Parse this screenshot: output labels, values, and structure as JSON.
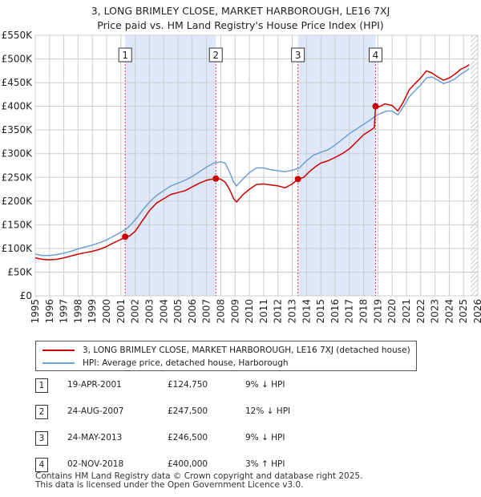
{
  "chart_data": {
    "type": "line",
    "title": "3, LONG BRIMLEY CLOSE, MARKET HARBOROUGH, LE16 7XJ",
    "subtitle": "Price paid vs. HM Land Registry's House Price Index (HPI)",
    "xlabel": "",
    "ylabel": "",
    "xlim": [
      1995,
      2026
    ],
    "ylim": [
      0,
      550000
    ],
    "x_ticks": [
      "1995",
      "1996",
      "1997",
      "1998",
      "1999",
      "2000",
      "2001",
      "2002",
      "2003",
      "2004",
      "2005",
      "2006",
      "2007",
      "2008",
      "2009",
      "2010",
      "2011",
      "2012",
      "2013",
      "2014",
      "2015",
      "2016",
      "2017",
      "2018",
      "2019",
      "2020",
      "2021",
      "2022",
      "2023",
      "2024",
      "2025",
      "2026"
    ],
    "y_ticks": [
      {
        "value": 0,
        "label": "£0"
      },
      {
        "value": 50000,
        "label": "£50K"
      },
      {
        "value": 100000,
        "label": "£100K"
      },
      {
        "value": 150000,
        "label": "£150K"
      },
      {
        "value": 200000,
        "label": "£200K"
      },
      {
        "value": 250000,
        "label": "£250K"
      },
      {
        "value": 300000,
        "label": "£300K"
      },
      {
        "value": 350000,
        "label": "£350K"
      },
      {
        "value": 400000,
        "label": "£400K"
      },
      {
        "value": 450000,
        "label": "£450K"
      },
      {
        "value": 500000,
        "label": "£500K"
      },
      {
        "value": 550000,
        "label": "£550K"
      }
    ],
    "grid": true,
    "series": [
      {
        "name": "3, LONG BRIMLEY CLOSE, MARKET HARBOROUGH, LE16 7XJ (detached house)",
        "color": "#cc0000",
        "points": [
          [
            1995.0,
            80000
          ],
          [
            1995.5,
            77000
          ],
          [
            1996.0,
            76000
          ],
          [
            1996.5,
            77000
          ],
          [
            1997.0,
            80000
          ],
          [
            1997.5,
            84000
          ],
          [
            1998.0,
            88000
          ],
          [
            1998.5,
            91000
          ],
          [
            1999.0,
            94000
          ],
          [
            1999.5,
            98000
          ],
          [
            2000.0,
            104000
          ],
          [
            2000.5,
            112000
          ],
          [
            2001.0,
            119000
          ],
          [
            2001.3,
            124750
          ],
          [
            2001.6,
            126000
          ],
          [
            2002.0,
            136000
          ],
          [
            2002.5,
            158000
          ],
          [
            2003.0,
            180000
          ],
          [
            2003.5,
            196000
          ],
          [
            2004.0,
            205000
          ],
          [
            2004.5,
            214000
          ],
          [
            2005.0,
            218000
          ],
          [
            2005.5,
            222000
          ],
          [
            2006.0,
            230000
          ],
          [
            2006.5,
            238000
          ],
          [
            2007.0,
            244000
          ],
          [
            2007.65,
            247500
          ],
          [
            2008.0,
            246000
          ],
          [
            2008.3,
            240000
          ],
          [
            2008.6,
            225000
          ],
          [
            2008.9,
            205000
          ],
          [
            2009.1,
            198000
          ],
          [
            2009.5,
            212000
          ],
          [
            2010.0,
            225000
          ],
          [
            2010.5,
            235000
          ],
          [
            2011.0,
            236000
          ],
          [
            2011.5,
            234000
          ],
          [
            2012.0,
            232000
          ],
          [
            2012.5,
            228000
          ],
          [
            2013.0,
            236000
          ],
          [
            2013.4,
            246500
          ],
          [
            2013.8,
            250000
          ],
          [
            2014.2,
            262000
          ],
          [
            2014.6,
            272000
          ],
          [
            2015.0,
            280000
          ],
          [
            2015.5,
            285000
          ],
          [
            2016.0,
            292000
          ],
          [
            2016.5,
            300000
          ],
          [
            2017.0,
            310000
          ],
          [
            2017.5,
            325000
          ],
          [
            2018.0,
            340000
          ],
          [
            2018.5,
            350000
          ],
          [
            2018.75,
            355000
          ],
          [
            2018.84,
            400000
          ],
          [
            2019.0,
            398000
          ],
          [
            2019.5,
            405000
          ],
          [
            2020.0,
            402000
          ],
          [
            2020.4,
            390000
          ],
          [
            2020.8,
            410000
          ],
          [
            2021.2,
            435000
          ],
          [
            2021.6,
            448000
          ],
          [
            2022.0,
            460000
          ],
          [
            2022.4,
            475000
          ],
          [
            2022.8,
            470000
          ],
          [
            2023.2,
            462000
          ],
          [
            2023.6,
            455000
          ],
          [
            2024.0,
            460000
          ],
          [
            2024.4,
            468000
          ],
          [
            2024.8,
            478000
          ],
          [
            2025.2,
            484000
          ],
          [
            2025.4,
            488000
          ]
        ]
      },
      {
        "name": "HPI: Average price, detached house, Harborough",
        "color": "#6f9fd0",
        "points": [
          [
            1995.0,
            88000
          ],
          [
            1995.5,
            85000
          ],
          [
            1996.0,
            85000
          ],
          [
            1996.5,
            87000
          ],
          [
            1997.0,
            90000
          ],
          [
            1997.5,
            94000
          ],
          [
            1998.0,
            99000
          ],
          [
            1998.5,
            103000
          ],
          [
            1999.0,
            107000
          ],
          [
            1999.5,
            112000
          ],
          [
            2000.0,
            118000
          ],
          [
            2000.5,
            126000
          ],
          [
            2001.0,
            134000
          ],
          [
            2001.5,
            144000
          ],
          [
            2002.0,
            160000
          ],
          [
            2002.5,
            180000
          ],
          [
            2003.0,
            198000
          ],
          [
            2003.5,
            212000
          ],
          [
            2004.0,
            222000
          ],
          [
            2004.5,
            232000
          ],
          [
            2005.0,
            238000
          ],
          [
            2005.5,
            244000
          ],
          [
            2006.0,
            252000
          ],
          [
            2006.5,
            262000
          ],
          [
            2007.0,
            272000
          ],
          [
            2007.5,
            280000
          ],
          [
            2008.0,
            283000
          ],
          [
            2008.3,
            280000
          ],
          [
            2008.6,
            262000
          ],
          [
            2008.9,
            240000
          ],
          [
            2009.1,
            232000
          ],
          [
            2009.5,
            245000
          ],
          [
            2010.0,
            260000
          ],
          [
            2010.5,
            270000
          ],
          [
            2011.0,
            270000
          ],
          [
            2011.5,
            266000
          ],
          [
            2012.0,
            264000
          ],
          [
            2012.5,
            262000
          ],
          [
            2013.0,
            265000
          ],
          [
            2013.5,
            270000
          ],
          [
            2014.0,
            285000
          ],
          [
            2014.5,
            297000
          ],
          [
            2015.0,
            303000
          ],
          [
            2015.5,
            308000
          ],
          [
            2016.0,
            318000
          ],
          [
            2016.5,
            330000
          ],
          [
            2017.0,
            342000
          ],
          [
            2017.5,
            352000
          ],
          [
            2018.0,
            362000
          ],
          [
            2018.5,
            372000
          ],
          [
            2018.84,
            380000
          ],
          [
            2019.2,
            385000
          ],
          [
            2019.6,
            390000
          ],
          [
            2020.0,
            390000
          ],
          [
            2020.4,
            382000
          ],
          [
            2020.8,
            400000
          ],
          [
            2021.2,
            420000
          ],
          [
            2021.6,
            433000
          ],
          [
            2022.0,
            445000
          ],
          [
            2022.4,
            460000
          ],
          [
            2022.8,
            462000
          ],
          [
            2023.2,
            455000
          ],
          [
            2023.6,
            448000
          ],
          [
            2024.0,
            452000
          ],
          [
            2024.4,
            458000
          ],
          [
            2024.8,
            468000
          ],
          [
            2025.2,
            475000
          ],
          [
            2025.4,
            480000
          ]
        ]
      }
    ],
    "shaded_spans": [
      [
        2001.3,
        2007.65
      ],
      [
        2013.4,
        2018.84
      ]
    ],
    "future_hatch_from": 2025.5,
    "sales": [
      {
        "num": "1",
        "x": 2001.3,
        "price": 124750,
        "date": "19-APR-2001",
        "price_label": "£124,750",
        "hpi": "9% ↓ HPI"
      },
      {
        "num": "2",
        "x": 2007.65,
        "price": 247500,
        "date": "24-AUG-2007",
        "price_label": "£247,500",
        "hpi": "12% ↓ HPI"
      },
      {
        "num": "3",
        "x": 2013.4,
        "price": 246500,
        "date": "24-MAY-2013",
        "price_label": "£246,500",
        "hpi": "9% ↓ HPI"
      },
      {
        "num": "4",
        "x": 2018.84,
        "price": 400000,
        "date": "02-NOV-2018",
        "price_label": "£400,000",
        "hpi": "3% ↑ HPI"
      }
    ]
  },
  "legend": {
    "property_label": "3, LONG BRIMLEY CLOSE, MARKET HARBOROUGH, LE16 7XJ (detached house)",
    "hpi_label": "HPI: Average price, detached house, Harborough",
    "property_color": "#cc0000",
    "hpi_color": "#6f9fd0"
  },
  "footer": {
    "line1": "Contains HM Land Registry data © Crown copyright and database right 2025.",
    "line2": "This data is licensed under the Open Government Licence v3.0."
  }
}
